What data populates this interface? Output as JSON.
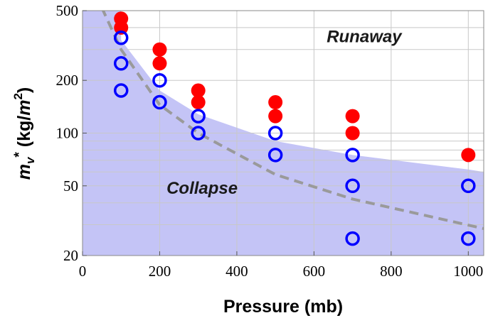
{
  "chart_data": {
    "type": "scatter",
    "xlabel": "Pressure (mb)",
    "ylabel": {
      "main": "m",
      "sub": "v",
      "sup": "*",
      "unit_open": " (kg/",
      "unit_var": "m",
      "unit_sup": "2",
      "unit_close": ")"
    },
    "xlim": [
      0,
      1040
    ],
    "ylim": [
      20,
      500
    ],
    "yscale": "log",
    "grid": true,
    "x_ticks": [
      0,
      200,
      400,
      600,
      800,
      1000
    ],
    "x_tick_labels": [
      "0",
      "200",
      "400",
      "600",
      "800",
      "1000"
    ],
    "y_ticks": [
      20,
      50,
      100,
      200,
      500
    ],
    "y_tick_labels": [
      "20",
      "50",
      "100",
      "200",
      "500"
    ],
    "y_minor_gridlines": [
      30,
      40,
      60,
      70,
      80,
      90,
      300,
      400
    ],
    "annotations": [
      {
        "text": "Runaway",
        "x": 730,
        "y": 330
      },
      {
        "text": "Collapse",
        "x": 310,
        "y": 45
      }
    ],
    "shaded_boundary": {
      "x": [
        100,
        200,
        300,
        500,
        700,
        1000,
        1040
      ],
      "y": [
        340,
        175,
        128,
        90,
        75,
        62,
        60
      ]
    },
    "dashed_curve": {
      "x": [
        50,
        100,
        200,
        300,
        500,
        700,
        1040
      ],
      "y": [
        520,
        300,
        145,
        100,
        58,
        42,
        28.5
      ]
    },
    "series": [
      {
        "marker": "filled",
        "x": [
          100,
          100,
          200,
          200,
          300,
          300,
          500,
          500,
          700,
          700,
          1000
        ],
        "y": [
          450,
          400,
          300,
          250,
          175,
          150,
          150,
          125,
          125,
          100,
          75
        ]
      },
      {
        "marker": "open",
        "x": [
          100,
          100,
          100,
          200,
          200,
          300,
          300,
          500,
          500,
          700,
          700,
          700,
          1000,
          1000
        ],
        "y": [
          350,
          250,
          175,
          200,
          150,
          125,
          100,
          100,
          75,
          75,
          50,
          25,
          50,
          25
        ]
      }
    ],
    "colors": {
      "shading": "#c4c4f6",
      "filled_marker": "#ff0000",
      "open_marker": "#0000ff",
      "dashed_curve": "#9a9a9a",
      "grid": "#c8c8c8",
      "frame": "#888888"
    }
  }
}
